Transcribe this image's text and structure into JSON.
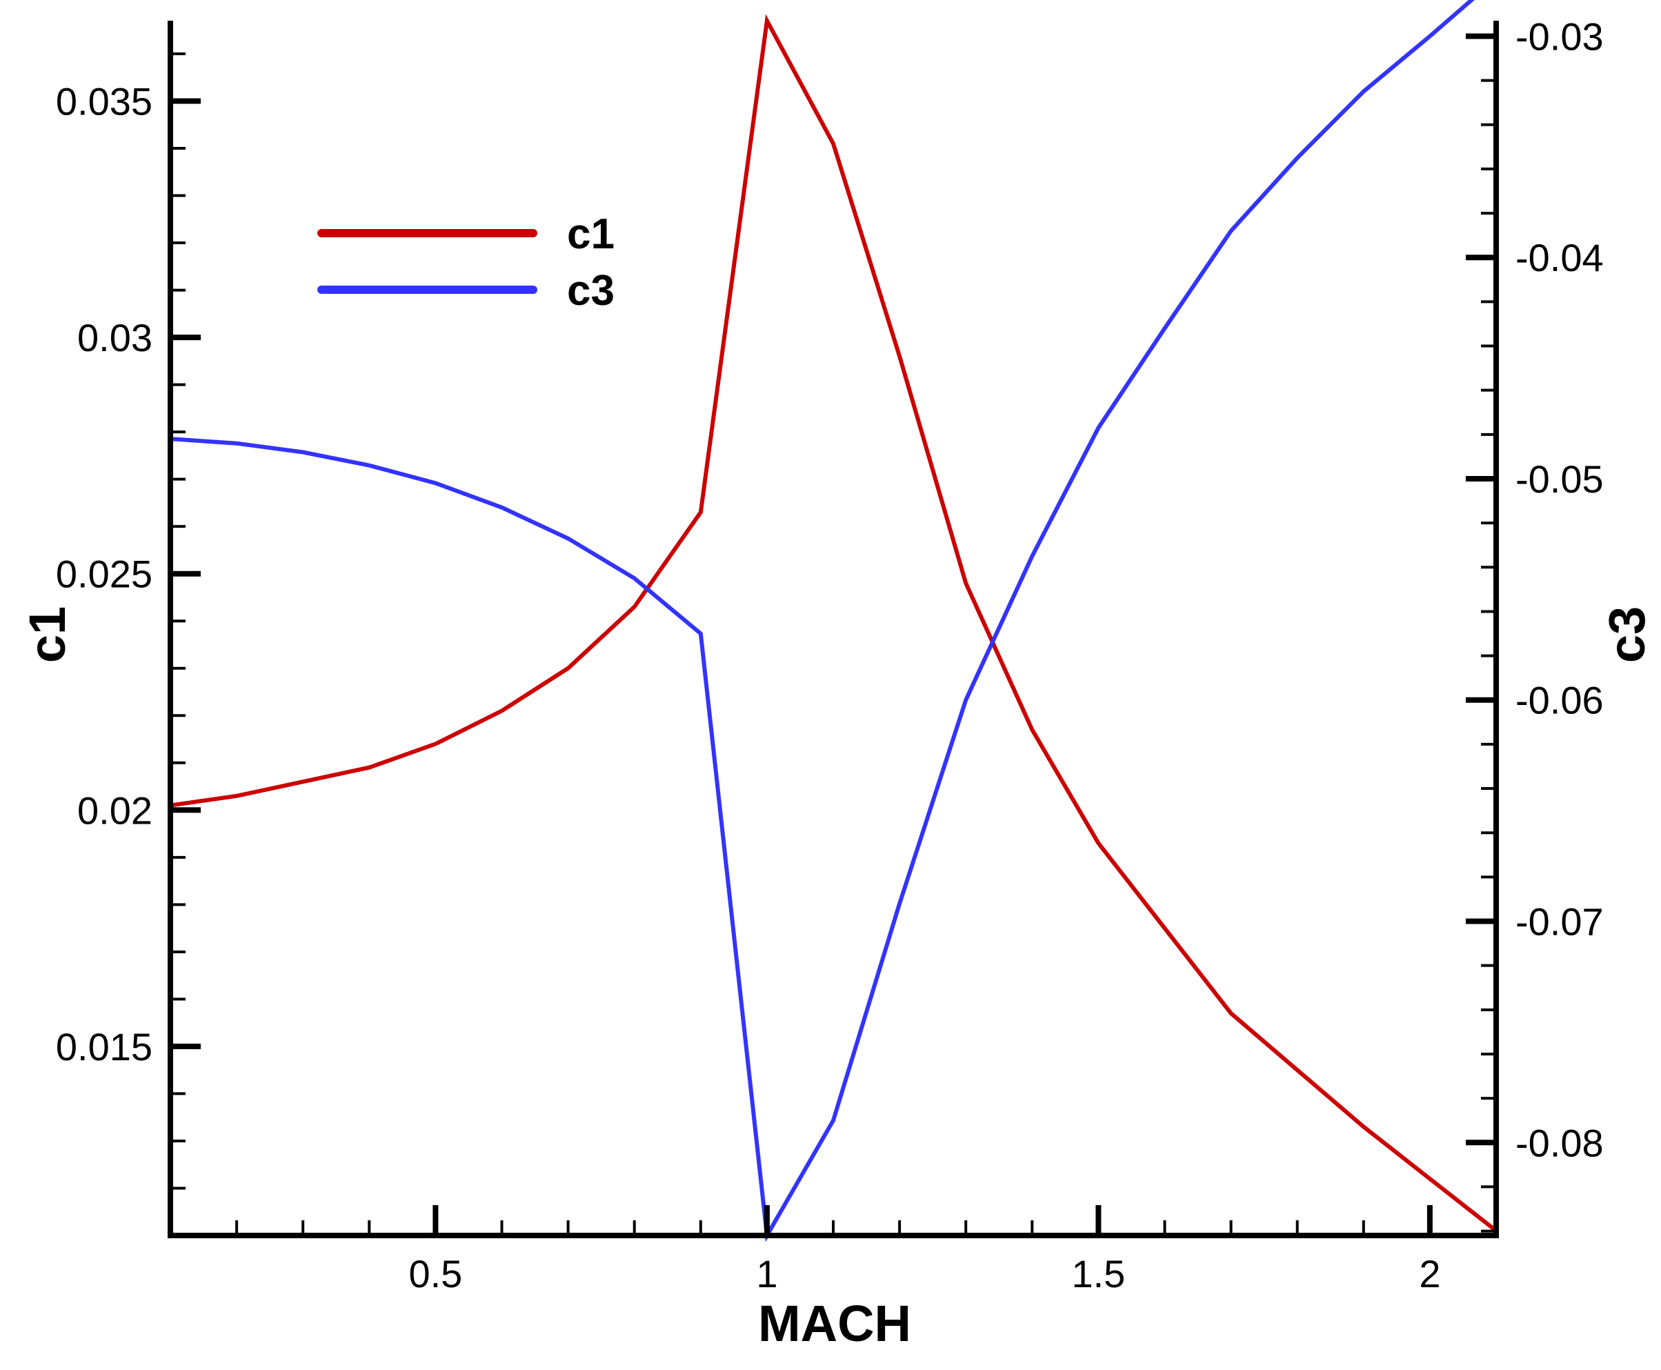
{
  "chart_data": {
    "type": "line",
    "title": "",
    "xlabel": "MACH",
    "ylabel": "c1",
    "y2label": "c3",
    "xlim": [
      0.1,
      2.1
    ],
    "ylim": [
      0.011,
      0.0367
    ],
    "y2lim": [
      -0.0842,
      -0.0293
    ],
    "xticks": [
      0.5,
      1,
      1.5,
      2
    ],
    "xtick_labels": [
      "0.5",
      "1",
      "1.5",
      "2"
    ],
    "yticks": [
      0.015,
      0.02,
      0.025,
      0.03,
      0.035
    ],
    "ytick_labels": [
      "0.015",
      "0.02",
      "0.025",
      "0.03",
      "0.035"
    ],
    "y2ticks": [
      -0.08,
      -0.07,
      -0.06,
      -0.05,
      -0.04,
      -0.03
    ],
    "y2tick_labels": [
      "-0.08",
      "-0.07",
      "-0.06",
      "-0.05",
      "-0.04",
      "-0.03"
    ],
    "grid": false,
    "legend_position": "top-left",
    "x": [
      0.1,
      0.2,
      0.3,
      0.4,
      0.5,
      0.6,
      0.7,
      0.8,
      0.9,
      1.0,
      1.1,
      1.2,
      1.3,
      1.4,
      1.5,
      1.6,
      1.7,
      1.8,
      1.9,
      2.0,
      2.1
    ],
    "series": [
      {
        "name": "c1",
        "axis": "left",
        "color": "#cc0000",
        "values": [
          0.0201,
          0.0203,
          0.0206,
          0.0209,
          0.0214,
          0.0221,
          0.023,
          0.0243,
          0.0263,
          0.0367,
          0.0341,
          0.0296,
          0.0248,
          0.0217,
          0.0193,
          0.0175,
          0.0157,
          0.0145,
          0.0133,
          0.0122,
          0.0111
        ]
      },
      {
        "name": "c3",
        "axis": "right",
        "color": "#3333ff",
        "values": [
          -0.0482,
          -0.0484,
          -0.0488,
          -0.0494,
          -0.0502,
          -0.0513,
          -0.0527,
          -0.0545,
          -0.057,
          -0.0842,
          -0.079,
          -0.0692,
          -0.06,
          -0.0535,
          -0.0477,
          -0.0432,
          -0.0388,
          -0.0355,
          -0.0325,
          -0.03,
          -0.0274
        ]
      }
    ]
  }
}
